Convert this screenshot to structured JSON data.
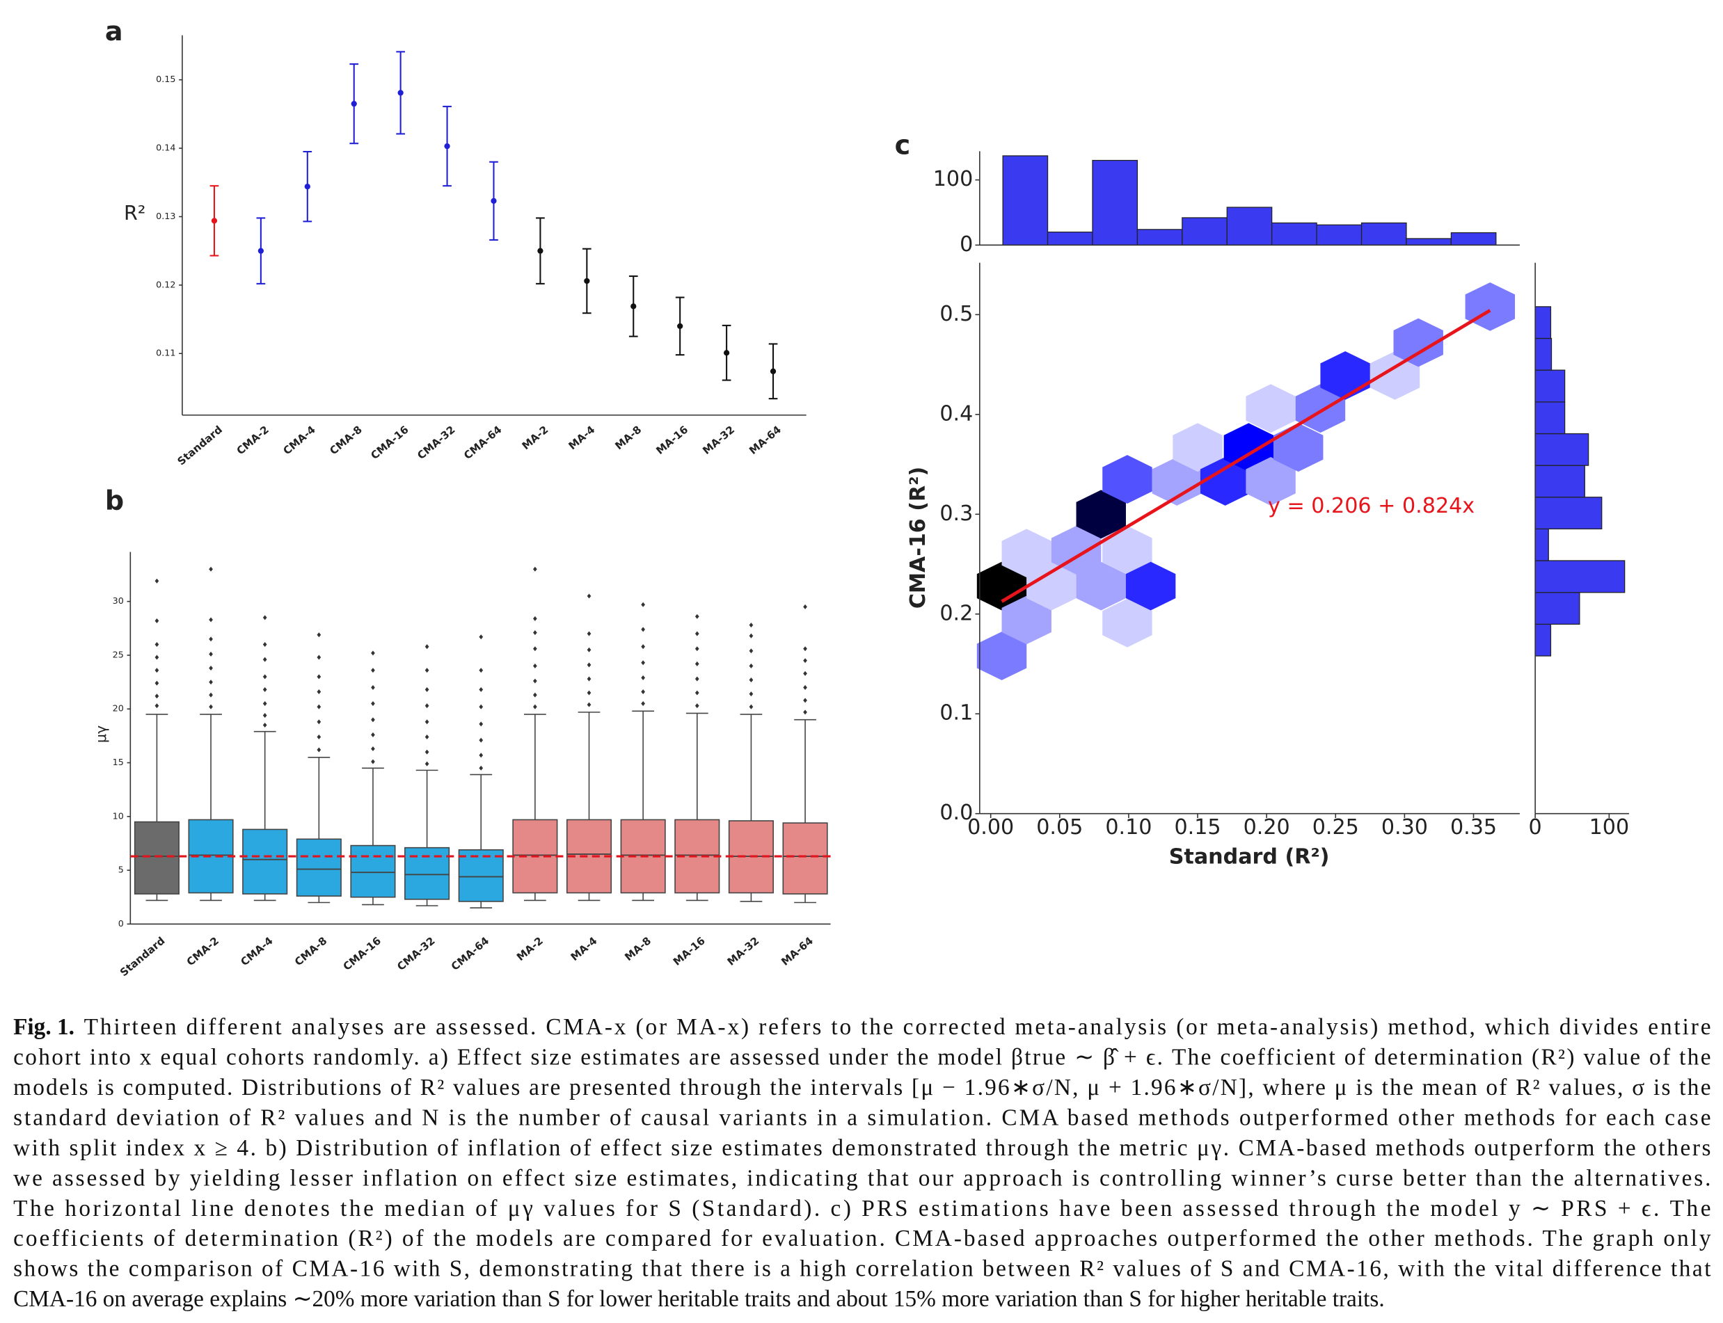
{
  "chart_data": [
    {
      "type": "errorbar",
      "panel": "a",
      "ylabel": "R²",
      "categories": [
        "Standard",
        "CMA-2",
        "CMA-4",
        "CMA-8",
        "CMA-16",
        "CMA-32",
        "CMA-64",
        "MA-2",
        "MA-4",
        "MA-8",
        "MA-16",
        "MA-32",
        "MA-64"
      ],
      "values": [
        0.1294,
        0.125,
        0.1344,
        0.1465,
        0.1481,
        0.1403,
        0.1323,
        0.125,
        0.1206,
        0.1169,
        0.114,
        0.1101,
        0.1074
      ],
      "errors": [
        0.0051,
        0.0048,
        0.0051,
        0.0058,
        0.006,
        0.0058,
        0.0057,
        0.0048,
        0.0047,
        0.0044,
        0.0042,
        0.004,
        0.004
      ],
      "colors": [
        "#e8141c",
        "#1f1fd6",
        "#1f1fd6",
        "#1f1fd6",
        "#1f1fd6",
        "#1f1fd6",
        "#1f1fd6",
        "#111111",
        "#111111",
        "#111111",
        "#111111",
        "#111111",
        "#111111"
      ],
      "ylim": [
        0.101,
        0.1565
      ],
      "yticks": [
        0.11,
        0.12,
        0.13,
        0.14,
        0.15
      ]
    },
    {
      "type": "box",
      "panel": "b",
      "ylabel": "μγ",
      "categories": [
        "Standard",
        "CMA-2",
        "CMA-4",
        "CMA-8",
        "CMA-16",
        "CMA-32",
        "CMA-64",
        "MA-2",
        "MA-4",
        "MA-8",
        "MA-16",
        "MA-32",
        "MA-64"
      ],
      "whislo": [
        2.2,
        2.2,
        2.2,
        2.0,
        1.8,
        1.7,
        1.5,
        2.2,
        2.2,
        2.2,
        2.2,
        2.1,
        2.0
      ],
      "q1": [
        2.8,
        2.9,
        2.8,
        2.6,
        2.5,
        2.3,
        2.1,
        2.9,
        2.9,
        2.9,
        2.9,
        2.9,
        2.8
      ],
      "median": [
        6.3,
        6.4,
        6.0,
        5.1,
        4.8,
        4.6,
        4.4,
        6.4,
        6.5,
        6.4,
        6.4,
        6.3,
        6.3
      ],
      "q3": [
        9.5,
        9.7,
        8.8,
        7.9,
        7.3,
        7.1,
        6.9,
        9.7,
        9.7,
        9.7,
        9.7,
        9.6,
        9.4
      ],
      "whishi": [
        19.5,
        19.5,
        17.9,
        15.5,
        14.5,
        14.3,
        13.9,
        19.5,
        19.7,
        19.8,
        19.6,
        19.5,
        19.0
      ],
      "fliers": [
        [
          20.3,
          21.2,
          22.4,
          23.6,
          24.8,
          26,
          28.2,
          31.9
        ],
        [
          20.2,
          21.3,
          22.5,
          23.8,
          25.1,
          26.5,
          28.3,
          33
        ],
        [
          18.5,
          19.4,
          20.5,
          21.8,
          23,
          24.6,
          26,
          28.5
        ],
        [
          16.2,
          17.4,
          18.8,
          20.2,
          21.6,
          23,
          24.8,
          26.9
        ],
        [
          15.1,
          16.3,
          17.6,
          19,
          20.5,
          22,
          23.6,
          25.2
        ],
        [
          14.9,
          16,
          17.4,
          18.8,
          20.3,
          21.8,
          23.6,
          25.8
        ],
        [
          14.5,
          15.7,
          17.1,
          18.6,
          20.2,
          21.8,
          23.6,
          26.7
        ],
        [
          20.2,
          21.3,
          22.6,
          24,
          25.6,
          27.1,
          28.4,
          33
        ],
        [
          20.4,
          21.5,
          22.8,
          24.1,
          25.5,
          27,
          30.5
        ],
        [
          20.5,
          21.6,
          22.9,
          24.3,
          25.8,
          27.4,
          29.7
        ],
        [
          20.3,
          21.5,
          22.8,
          24.2,
          25.6,
          27,
          28.6
        ],
        [
          20.2,
          21.4,
          22.7,
          24,
          25.4,
          26.8,
          27.8
        ],
        [
          19.7,
          20.8,
          22,
          23.3,
          24.5,
          25.6,
          29.5
        ]
      ],
      "colors": [
        "#6b6b6b",
        "#2ba8e0",
        "#2ba8e0",
        "#2ba8e0",
        "#2ba8e0",
        "#2ba8e0",
        "#2ba8e0",
        "#e48888",
        "#e48888",
        "#e48888",
        "#e48888",
        "#e48888",
        "#e48888"
      ],
      "hline": 6.3,
      "hline_color": "#e0141c",
      "ylim": [
        0,
        34.6
      ],
      "yticks": [
        0,
        5,
        10,
        15,
        20,
        25,
        30
      ]
    },
    {
      "type": "hexbin",
      "panel": "c",
      "xlabel": "Standard (R²)",
      "ylabel": "CMA-16 (R²)",
      "x": [
        0.008,
        0.008,
        0.026,
        0.026,
        0.044,
        0.062,
        0.08,
        0.08,
        0.099,
        0.099,
        0.116,
        0.099,
        0.135,
        0.15,
        0.17,
        0.187,
        0.203,
        0.203,
        0.223,
        0.239,
        0.257,
        0.293,
        0.31,
        0.362
      ],
      "y": [
        0.228,
        0.158,
        0.194,
        0.261,
        0.228,
        0.264,
        0.3,
        0.228,
        0.264,
        0.191,
        0.228,
        0.335,
        0.333,
        0.367,
        0.333,
        0.367,
        0.406,
        0.333,
        0.367,
        0.406,
        0.439,
        0.439,
        0.472,
        0.508
      ],
      "values": [
        10,
        3,
        2,
        1,
        1,
        2,
        9,
        2,
        1,
        1,
        5,
        4,
        2,
        1,
        5,
        6,
        1,
        2,
        3,
        3,
        5,
        1,
        3,
        3
      ],
      "cmap": [
        "#f6f6ff",
        "#0000ff",
        "#000000"
      ],
      "fit": {
        "intercept": 0.206,
        "slope": 0.824
      },
      "fit_x": [
        0.008,
        0.362
      ],
      "fit_color": "#e8141c",
      "annotation": "y = 0.206 + 0.824x",
      "xlim": [
        -0.008,
        0.3835
      ],
      "xticks": [
        {
          "value": 0,
          "label": "0.00"
        },
        0.05,
        {
          "value": 0.1,
          "label": "0.10"
        },
        0.15,
        {
          "value": 0.2,
          "label": "0.20"
        },
        0.25,
        {
          "value": 0.3,
          "label": "0.30"
        },
        0.35
      ],
      "ylim": [
        0,
        0.552
      ],
      "yticks": [
        {
          "value": 0,
          "label": "0.0"
        },
        0.1,
        0.2,
        0.3,
        0.4,
        0.5
      ]
    },
    {
      "type": "histogram",
      "orientation": "vertical",
      "color": "#3a3af0",
      "bins": [
        0.0088,
        0.0413,
        0.0738,
        0.1063,
        0.1388,
        0.1713,
        0.2038,
        0.2363,
        0.2688,
        0.3013,
        0.3338,
        0.3663
      ],
      "values": [
        137,
        20,
        130,
        24,
        42,
        58,
        34,
        31,
        34,
        10,
        19
      ],
      "ylim": [
        0,
        144
      ],
      "yticks": [
        0,
        100
      ]
    },
    {
      "type": "histogram",
      "orientation": "horizontal",
      "color": "#3a3af0",
      "bins": [
        0.158,
        0.1898,
        0.2216,
        0.2535,
        0.2853,
        0.3171,
        0.3489,
        0.3807,
        0.4125,
        0.4444,
        0.4762,
        0.508
      ],
      "values": [
        21,
        60,
        121,
        18,
        90,
        67,
        72,
        40,
        40,
        22,
        21
      ],
      "xlim": [
        0,
        127
      ],
      "xticks": [
        0,
        100
      ]
    }
  ],
  "caption": {
    "label": "Fig. 1.",
    "lines": [
      "Thirteen different analyses are assessed. CMA-x (or MA-x) refers to the corrected meta-analysis (or meta-analysis) method, which divides entire",
      "cohort into x equal cohorts randomly. a) Effect size estimates are assessed under the model βtrue ∼ β̂ + ϵ. The coefficient of determination (R²) value of the",
      "models is computed. Distributions of R² values are presented through the intervals [μ − 1.96∗σ/N, μ + 1.96∗σ/N],  where μ is the mean of R² values, σ is the",
      "standard deviation of R² values and N is the number of causal variants in a simulation. CMA based methods outperformed other methods for each case",
      "with split index x ≥ 4. b) Distribution of inflation of effect size estimates demonstrated through the metric μγ. CMA-based methods outperform the others",
      "we assessed by yielding lesser inflation on effect size estimates, indicating that our approach is controlling winner’s curse better than the alternatives.",
      "The horizontal line denotes the median of μγ values for S (Standard). c) PRS estimations have been assessed through the model y ∼ PRS + ϵ. The",
      "coefficients of determination (R²) of the models are compared for evaluation. CMA-based approaches outperformed the other methods. The graph only",
      "shows the comparison of CMA-16 with S, demonstrating that there is a high correlation between R² values of S and CMA-16, with the vital difference that",
      "CMA-16 on average explains ∼20% more variation than S for lower heritable traits and about 15% more variation than S for higher heritable traits."
    ]
  }
}
